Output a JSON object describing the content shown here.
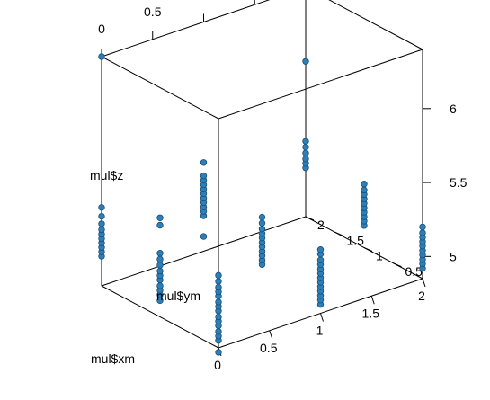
{
  "chart_data": {
    "type": "scatter",
    "subtype": "3d-scatter",
    "xlabel": "mul$xm",
    "ylabel": "mul$ym",
    "zlabel": "mul$z",
    "xlim": [
      0,
      2
    ],
    "ylim": [
      0,
      2
    ],
    "zlim": [
      4.85,
      6.4
    ],
    "x_ticks": [
      "0",
      "0.5",
      "1",
      "1.5",
      "2"
    ],
    "y_ticks": [
      "0",
      "0.5",
      "1",
      "1.5",
      "2"
    ],
    "z_ticks": [
      "5",
      "5.5",
      "6"
    ],
    "point_color": "#2c7fb8",
    "box": true,
    "grid": false,
    "groups": [
      {
        "x": 0,
        "y": 0,
        "z": [
          4.9,
          4.93,
          4.96,
          5.0,
          5.03,
          5.06,
          5.1,
          5.13,
          5.16,
          5.2,
          5.23,
          5.26,
          5.3,
          5.34
        ]
      },
      {
        "x": 0,
        "y": 1,
        "z": [
          4.96,
          5.0,
          5.03,
          5.06,
          5.1,
          5.13,
          5.16,
          5.2,
          5.24,
          5.28
        ]
      },
      {
        "x": 0,
        "y": 2,
        "z": [
          5.05,
          5.08,
          5.11,
          5.14,
          5.17,
          5.2,
          5.23,
          5.27,
          5.32,
          5.38
        ]
      },
      {
        "x": 1,
        "y": 0,
        "z": [
          4.91,
          4.94,
          4.97,
          5.0,
          5.03,
          5.06,
          5.09,
          5.12,
          5.15,
          5.18,
          5.21,
          5.25,
          5.28
        ]
      },
      {
        "x": 1,
        "y": 1,
        "z": [
          4.97,
          5.0,
          5.03,
          5.06,
          5.09,
          5.12,
          5.15,
          5.18,
          5.21,
          5.25,
          5.29
        ]
      },
      {
        "x": 1,
        "y": 2,
        "z": [
          5.09,
          5.12,
          5.15,
          5.18,
          5.21,
          5.24,
          5.27,
          5.3,
          5.33,
          5.36,
          5.45
        ]
      },
      {
        "x": 2,
        "y": 0,
        "z": [
          4.92,
          4.95,
          4.98,
          5.01,
          5.04,
          5.07,
          5.1,
          5.13,
          5.16,
          5.2
        ]
      },
      {
        "x": 2,
        "y": 1,
        "z": [
          5.0,
          5.03,
          5.06,
          5.09,
          5.12,
          5.15,
          5.18,
          5.21,
          5.24,
          5.28
        ]
      },
      {
        "x": 2,
        "y": 2,
        "z": [
          5.18,
          5.21,
          5.24,
          5.28,
          5.32,
          5.36
        ]
      }
    ],
    "outliers": [
      {
        "x": 0,
        "y": 2,
        "z": 6.4
      },
      {
        "x": 2,
        "y": 2,
        "z": 5.9
      },
      {
        "x": 0,
        "y": 0,
        "z": 4.82
      },
      {
        "x": 1,
        "y": 2,
        "z": 4.95
      },
      {
        "x": 0,
        "y": 1,
        "z": 5.52
      },
      {
        "x": 0,
        "y": 1,
        "z": 5.47
      }
    ]
  }
}
